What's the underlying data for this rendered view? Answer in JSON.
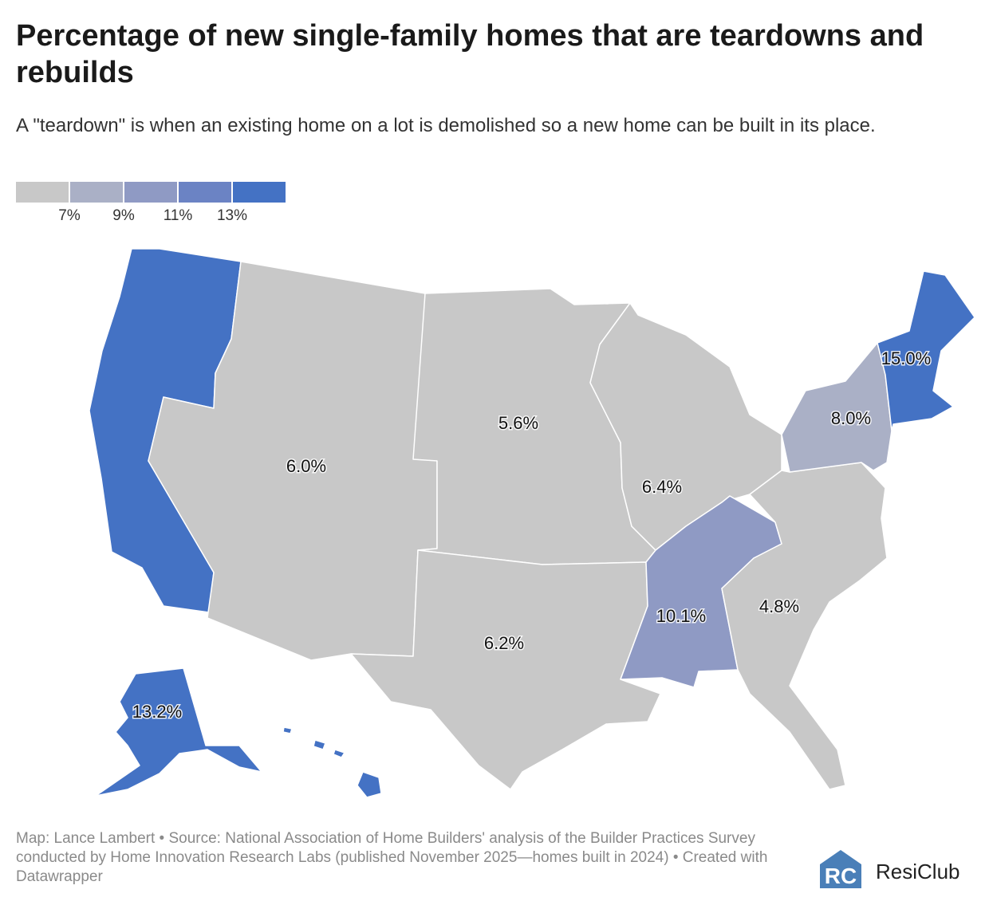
{
  "header": {
    "title": "Percentage of new single-family homes that are teardowns and rebuilds",
    "subtitle": "A \"teardown\" is when an existing home on a lot is demolished so a new home can be built in its place."
  },
  "legend": {
    "colors": [
      "#c8c8c8",
      "#aab0c6",
      "#8f9ac4",
      "#6b83c4",
      "#4472c4"
    ],
    "ticks": [
      "7%",
      "9%",
      "11%",
      "13%"
    ]
  },
  "regions": [
    {
      "id": "west-coast",
      "value": "",
      "color": "#4472c4"
    },
    {
      "id": "mountain",
      "value": "6.0%",
      "color": "#c8c8c8"
    },
    {
      "id": "west-north-central",
      "value": "5.6%",
      "color": "#c8c8c8"
    },
    {
      "id": "east-north-central",
      "value": "6.4%",
      "color": "#c8c8c8"
    },
    {
      "id": "west-south-central",
      "value": "6.2%",
      "color": "#c8c8c8"
    },
    {
      "id": "east-south-central",
      "value": "10.1%",
      "color": "#8f9ac4"
    },
    {
      "id": "south-atlantic",
      "value": "4.8%",
      "color": "#c8c8c8"
    },
    {
      "id": "middle-atlantic",
      "value": "8.0%",
      "color": "#aab0c6"
    },
    {
      "id": "new-england",
      "value": "15.0%",
      "color": "#4472c4"
    },
    {
      "id": "alaska-hawaii",
      "value": "13.2%",
      "color": "#4472c4"
    }
  ],
  "footer": {
    "source": "Map: Lance Lambert • Source: National Association of Home Builders' analysis of the Builder Practices Survey conducted by Home Innovation Research Labs (published November 2025—homes built in 2024) • Created with Datawrapper"
  },
  "logo": {
    "name": "ResiClub",
    "color": "#4a7fb8"
  }
}
